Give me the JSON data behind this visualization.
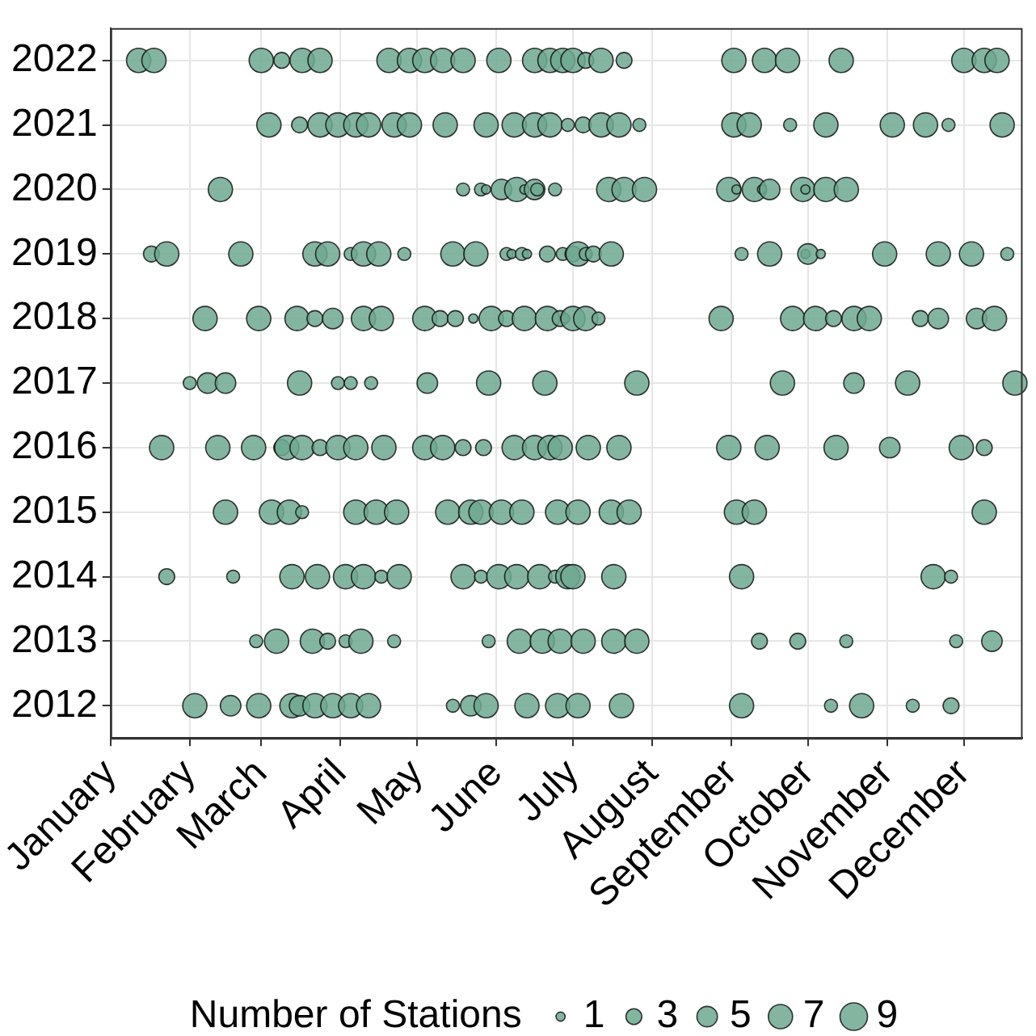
{
  "chart_data": {
    "type": "bubble",
    "legend_title": "Number of Stations",
    "size_legend": [
      1,
      3,
      5,
      7,
      9
    ],
    "grid": true,
    "xlim": [
      "--01-01",
      "--12-24"
    ],
    "xticks": [
      {
        "value": "--01-01",
        "label": "January"
      },
      {
        "value": "--02-01",
        "label": "February"
      },
      {
        "value": "--03-01",
        "label": "March"
      },
      {
        "value": "--04-01",
        "label": "April"
      },
      {
        "value": "--05-01",
        "label": "May"
      },
      {
        "value": "--06-01",
        "label": "June"
      },
      {
        "value": "--07-01",
        "label": "July"
      },
      {
        "value": "--08-01",
        "label": "August"
      },
      {
        "value": "--09-01",
        "label": "September"
      },
      {
        "value": "--10-01",
        "label": "October"
      },
      {
        "value": "--11-01",
        "label": "November"
      },
      {
        "value": "--12-01",
        "label": "December"
      }
    ],
    "ylim": [
      2011.5,
      2022.5
    ],
    "yticks": [
      2012,
      2013,
      2014,
      2015,
      2016,
      2017,
      2018,
      2019,
      2020,
      2021,
      2022
    ],
    "series": [
      {
        "color": "#6fa891",
        "x": [
          "--02-03",
          "--02-17",
          "--02-28",
          "--03-13",
          "--03-16",
          "--03-22",
          "--03-29",
          "--04-05",
          "--04-12",
          "--05-15",
          "--05-22",
          "--05-28",
          "--06-13",
          "--06-25",
          "--07-03",
          "--07-20",
          "--09-05",
          "--10-10",
          "--10-22",
          "--11-11",
          "--11-26"
        ],
        "values": [
          2012,
          2012,
          2012,
          2012,
          2012,
          2012,
          2012,
          2012,
          2012,
          2012,
          2012,
          2012,
          2012,
          2012,
          2012,
          2012,
          2012,
          2012,
          2012,
          2012,
          2012
        ],
        "sizes": [
          7,
          5,
          7,
          7,
          5,
          7,
          7,
          7,
          7,
          2,
          5,
          7,
          7,
          7,
          7,
          7,
          7,
          2,
          7,
          2,
          3
        ]
      },
      {
        "color": "#6fa891",
        "x": [
          "--02-27",
          "--03-07",
          "--03-21",
          "--03-27",
          "--04-03",
          "--04-09",
          "--04-22",
          "--05-29",
          "--06-10",
          "--06-19",
          "--06-26",
          "--07-05",
          "--07-17",
          "--07-26",
          "--09-12",
          "--09-27",
          "--10-16",
          "--11-28",
          "--12-12"
        ],
        "values": [
          2013,
          2013,
          2013,
          2013,
          2013,
          2013,
          2013,
          2013,
          2013,
          2013,
          2013,
          2013,
          2013,
          2013,
          2013,
          2013,
          2013,
          2013,
          2013
        ],
        "sizes": [
          2,
          7,
          7,
          3,
          2,
          7,
          2,
          2,
          7,
          7,
          7,
          7,
          7,
          7,
          3,
          3,
          2,
          2,
          5
        ]
      },
      {
        "color": "#6fa891",
        "x": [
          "--01-23",
          "--02-18",
          "--03-13",
          "--03-23",
          "--04-03",
          "--04-10",
          "--04-17",
          "--04-24",
          "--05-19",
          "--05-26",
          "--06-02",
          "--06-09",
          "--06-18",
          "--06-24",
          "--06-29",
          "--07-01",
          "--07-17",
          "--09-05",
          "--11-19",
          "--11-26"
        ],
        "values": [
          2014,
          2014,
          2014,
          2014,
          2014,
          2014,
          2014,
          2014,
          2014,
          2014,
          2014,
          2014,
          2014,
          2014,
          2014,
          2014,
          2014,
          2014,
          2014,
          2014
        ],
        "sizes": [
          3,
          2,
          7,
          7,
          7,
          7,
          2,
          7,
          7,
          2,
          7,
          7,
          7,
          2,
          7,
          7,
          7,
          7,
          7,
          2
        ]
      },
      {
        "color": "#6fa891",
        "x": [
          "--02-15",
          "--03-05",
          "--03-12",
          "--03-17",
          "--04-07",
          "--04-15",
          "--04-23",
          "--05-13",
          "--05-22",
          "--05-26",
          "--06-03",
          "--06-11",
          "--06-25",
          "--07-03",
          "--07-16",
          "--07-23",
          "--09-03",
          "--09-10",
          "--12-09"
        ],
        "values": [
          2015,
          2015,
          2015,
          2015,
          2015,
          2015,
          2015,
          2015,
          2015,
          2015,
          2015,
          2015,
          2015,
          2015,
          2015,
          2015,
          2015,
          2015,
          2015
        ],
        "sizes": [
          7,
          7,
          7,
          2,
          7,
          7,
          7,
          7,
          7,
          7,
          7,
          7,
          7,
          7,
          7,
          7,
          7,
          7,
          7
        ]
      },
      {
        "color": "#6fa891",
        "x": [
          "--01-21",
          "--02-12",
          "--02-26",
          "--03-09",
          "--03-11",
          "--03-17",
          "--03-24",
          "--03-31",
          "--04-07",
          "--04-18",
          "--05-04",
          "--05-11",
          "--05-19",
          "--05-27",
          "--06-08",
          "--06-16",
          "--06-22",
          "--06-26",
          "--07-07",
          "--07-19",
          "--08-31",
          "--09-15",
          "--10-12",
          "--11-02",
          "--11-30",
          "--12-09"
        ],
        "values": [
          2016,
          2016,
          2016,
          2016,
          2016,
          2016,
          2016,
          2016,
          2016,
          2016,
          2016,
          2016,
          2016,
          2016,
          2016,
          2016,
          2016,
          2016,
          2016,
          2016,
          2016,
          2016,
          2016,
          2016,
          2016,
          2016
        ],
        "sizes": [
          7,
          7,
          7,
          3,
          7,
          7,
          3,
          7,
          7,
          7,
          7,
          7,
          3,
          3,
          7,
          7,
          7,
          7,
          7,
          7,
          7,
          7,
          7,
          5,
          7,
          3
        ]
      },
      {
        "color": "#6fa891",
        "x": [
          "--02-01",
          "--02-08",
          "--02-15",
          "--03-16",
          "--03-31",
          "--04-05",
          "--04-13",
          "--05-05",
          "--05-29",
          "--06-20",
          "--07-26",
          "--09-21",
          "--10-19",
          "--11-09",
          "--12-21"
        ],
        "values": [
          2017,
          2017,
          2017,
          2017,
          2017,
          2017,
          2017,
          2017,
          2017,
          2017,
          2017,
          2017,
          2017,
          2017,
          2017
        ],
        "sizes": [
          2,
          5,
          5,
          7,
          2,
          2,
          2,
          5,
          7,
          7,
          7,
          7,
          5,
          7,
          7
        ]
      },
      {
        "color": "#6fa891",
        "x": [
          "--02-07",
          "--02-28",
          "--03-15",
          "--03-22",
          "--03-29",
          "--04-10",
          "--04-17",
          "--05-04",
          "--05-10",
          "--05-16",
          "--05-23",
          "--05-30",
          "--06-05",
          "--06-12",
          "--06-21",
          "--06-26",
          "--06-28",
          "--07-01",
          "--07-06",
          "--07-11",
          "--08-28",
          "--09-25",
          "--10-04",
          "--10-11",
          "--10-19",
          "--10-25",
          "--11-14",
          "--11-21",
          "--12-06",
          "--12-13"
        ],
        "values": [
          2018,
          2018,
          2018,
          2018,
          2018,
          2018,
          2018,
          2018,
          2018,
          2018,
          2018,
          2018,
          2018,
          2018,
          2018,
          2018,
          2018,
          2018,
          2018,
          2018,
          2018,
          2018,
          2018,
          2018,
          2018,
          2018,
          2018,
          2018,
          2018,
          2018
        ],
        "sizes": [
          7,
          7,
          7,
          3,
          5,
          7,
          7,
          7,
          3,
          3,
          1,
          7,
          3,
          7,
          7,
          3,
          1,
          7,
          7,
          2,
          7,
          7,
          7,
          3,
          7,
          7,
          3,
          5,
          5,
          7
        ]
      },
      {
        "color": "#6fa891",
        "x": [
          "--01-17",
          "--01-23",
          "--02-21",
          "--03-22",
          "--03-27",
          "--04-05",
          "--04-10",
          "--04-16",
          "--04-26",
          "--05-15",
          "--05-24",
          "--06-05",
          "--06-07",
          "--06-11",
          "--06-13",
          "--06-21",
          "--06-27",
          "--07-01",
          "--07-03",
          "--07-06",
          "--07-09",
          "--07-16",
          "--09-05",
          "--09-16",
          "--09-30",
          "--10-01",
          "--10-06",
          "--10-31",
          "--11-21",
          "--12-04",
          "--12-18"
        ],
        "values": [
          2019,
          2019,
          2019,
          2019,
          2019,
          2019,
          2019,
          2019,
          2019,
          2019,
          2019,
          2019,
          2019,
          2019,
          2019,
          2019,
          2019,
          2019,
          2019,
          2019,
          2019,
          2019,
          2019,
          2019,
          2019,
          2019,
          2019,
          2019,
          2019,
          2019,
          2019
        ],
        "sizes": [
          3,
          7,
          7,
          7,
          7,
          2,
          7,
          7,
          2,
          7,
          7,
          2,
          1,
          2,
          1,
          3,
          2,
          3,
          7,
          2,
          3,
          7,
          2,
          7,
          1,
          5,
          1,
          7,
          7,
          7,
          2
        ]
      },
      {
        "color": "#6fa891",
        "x": [
          "--02-13",
          "--05-19",
          "--05-26",
          "--05-28",
          "--06-03",
          "--06-09",
          "--06-12",
          "--06-16",
          "--06-17",
          "--06-24",
          "--07-15",
          "--07-21",
          "--07-29",
          "--08-31",
          "--09-03",
          "--09-10",
          "--09-13",
          "--09-16",
          "--09-29",
          "--09-30",
          "--10-08",
          "--10-16"
        ],
        "values": [
          2020,
          2020,
          2020,
          2020,
          2020,
          2020,
          2020,
          2020,
          2020,
          2020,
          2020,
          2020,
          2020,
          2020,
          2020,
          2020,
          2020,
          2020,
          2020,
          2020,
          2020,
          2020
        ],
        "sizes": [
          7,
          2,
          2,
          1,
          5,
          7,
          1,
          5,
          2,
          2,
          7,
          7,
          7,
          7,
          1,
          7,
          1,
          5,
          7,
          1,
          7,
          7
        ]
      },
      {
        "color": "#6fa891",
        "x": [
          "--03-04",
          "--03-16",
          "--03-24",
          "--03-31",
          "--04-07",
          "--04-12",
          "--04-22",
          "--04-28",
          "--05-12",
          "--05-28",
          "--06-08",
          "--06-16",
          "--06-22",
          "--06-29",
          "--07-05",
          "--07-12",
          "--07-19",
          "--07-27",
          "--09-02",
          "--09-08",
          "--09-24",
          "--10-08",
          "--11-03",
          "--11-16",
          "--11-25",
          "--12-16"
        ],
        "values": [
          2021,
          2021,
          2021,
          2021,
          2021,
          2021,
          2021,
          2021,
          2021,
          2021,
          2021,
          2021,
          2021,
          2021,
          2021,
          2021,
          2021,
          2021,
          2021,
          2021,
          2021,
          2021,
          2021,
          2021,
          2021,
          2021
        ],
        "sizes": [
          7,
          3,
          7,
          7,
          7,
          7,
          7,
          7,
          7,
          7,
          7,
          7,
          7,
          2,
          3,
          7,
          7,
          2,
          7,
          7,
          2,
          7,
          7,
          7,
          2,
          7
        ]
      },
      {
        "color": "#6fa891",
        "x": [
          "--01-12",
          "--01-18",
          "--03-01",
          "--03-09",
          "--03-17",
          "--03-24",
          "--04-20",
          "--04-28",
          "--05-04",
          "--05-11",
          "--05-19",
          "--06-02",
          "--06-16",
          "--06-22",
          "--06-27",
          "--07-01",
          "--07-06",
          "--07-12",
          "--07-21",
          "--09-02",
          "--09-14",
          "--09-23",
          "--10-14",
          "--12-01",
          "--12-09",
          "--12-14"
        ],
        "values": [
          2022,
          2022,
          2022,
          2022,
          2022,
          2022,
          2022,
          2022,
          2022,
          2022,
          2022,
          2022,
          2022,
          2022,
          2022,
          2022,
          2022,
          2022,
          2022,
          2022,
          2022,
          2022,
          2022,
          2022,
          2022,
          2022
        ],
        "sizes": [
          7,
          7,
          7,
          3,
          7,
          7,
          7,
          7,
          7,
          7,
          7,
          7,
          7,
          7,
          7,
          7,
          3,
          7,
          3,
          7,
          7,
          7,
          7,
          7,
          7,
          7
        ]
      }
    ]
  }
}
